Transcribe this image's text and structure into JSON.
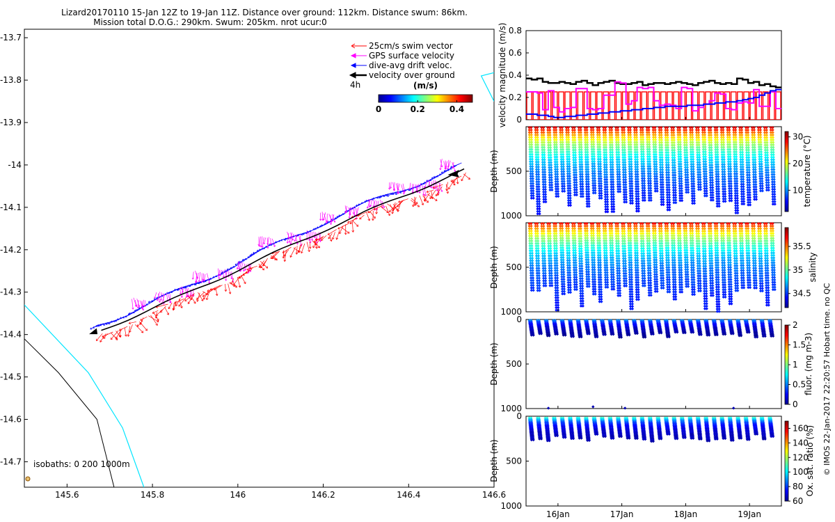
{
  "header": {
    "line1": "Lizard20170110 15-Jan 12Z to 19-Jan 11Z. Distance over ground: 112km. Distance swum: 86km.",
    "line2": "Mission total D.O.G.: 290km. Swum: 205km. nrot ucur:0"
  },
  "credit": "© IMOS 22-Jan-2017 22:20:57 Hobart time. no QC",
  "colors": {
    "swim": "#ff0000",
    "gps": "#ff00ff",
    "drift": "#0000ff",
    "ground": "#000000",
    "coast": "#00e5ff",
    "isobath": "#000000"
  },
  "chart_data": [
    {
      "id": "map",
      "type": "line",
      "title": "",
      "xlim": [
        145.5,
        146.6
      ],
      "ylim": [
        -14.76,
        -13.68
      ],
      "xticks": [
        145.6,
        145.8,
        146,
        146.2,
        146.4,
        146.6
      ],
      "xtick_labels": [
        "145.6",
        "145.8",
        "146",
        "146.2",
        "146.4",
        "146.6"
      ],
      "yticks": [
        -13.7,
        -13.8,
        -13.9,
        -14,
        -14.1,
        -14.2,
        -14.3,
        -14.4,
        -14.5,
        -14.6,
        -14.7
      ],
      "ytick_labels": [
        "-13.7",
        "-13.8",
        "-13.9",
        "-14",
        "-14.1",
        "-14.2",
        "-14.3",
        "-14.4",
        "-14.5",
        "-14.6",
        "-14.7"
      ],
      "legend": [
        {
          "label": "25cm/s swim vector",
          "key": "swim"
        },
        {
          "label": "GPS surface velocity",
          "key": "gps"
        },
        {
          "label": "dive-avg drift veloc.",
          "key": "drift"
        },
        {
          "label": "velocity over ground",
          "key": "ground"
        }
      ],
      "legend_interval": "4h",
      "colorbar": {
        "label": "(m/s)",
        "ticks": [
          0,
          0.2,
          0.4
        ],
        "tick_labels": [
          "0",
          "0.2",
          "0.4"
        ],
        "range": [
          0,
          0.48
        ]
      },
      "isobath_label": "isobaths: 0   200  1000m",
      "track_start": [
        145.68,
        -14.39
      ],
      "track_end": [
        146.53,
        -14.01
      ],
      "coast_line": [
        [
          145.5,
          -14.33
        ],
        [
          145.65,
          -14.49
        ],
        [
          145.73,
          -14.62
        ],
        [
          145.78,
          -14.76
        ]
      ],
      "isobath_line": [
        [
          145.5,
          -14.41
        ],
        [
          145.58,
          -14.49
        ],
        [
          145.67,
          -14.6
        ],
        [
          145.71,
          -14.76
        ]
      ],
      "edge_line": [
        [
          146.6,
          -13.85
        ],
        [
          146.57,
          -13.79
        ],
        [
          146.61,
          -13.78
        ],
        [
          146.63,
          -13.8
        ]
      ]
    },
    {
      "id": "velocity",
      "type": "line",
      "ylabel": "velocity magnitude (m/s)",
      "ylim": [
        0,
        0.8
      ],
      "yticks": [
        0,
        0.2,
        0.4,
        0.6,
        0.8
      ],
      "ytick_labels": [
        "0",
        "0.2",
        "0.4",
        "0.6",
        "0.8"
      ],
      "xlim": [
        15.5,
        19.5
      ],
      "series": [
        {
          "name": "velocity over ground",
          "values": [
            0.37,
            0.36,
            0.37,
            0.34,
            0.33,
            0.33,
            0.34,
            0.33,
            0.32,
            0.34,
            0.35,
            0.33,
            0.31,
            0.33,
            0.34,
            0.35,
            0.33,
            0.32,
            0.32,
            0.33,
            0.34,
            0.31,
            0.32,
            0.33,
            0.33,
            0.32,
            0.33,
            0.34,
            0.33,
            0.32,
            0.31,
            0.33,
            0.34,
            0.35,
            0.33,
            0.32,
            0.33,
            0.32,
            0.37,
            0.36,
            0.33,
            0.34,
            0.31,
            0.32,
            0.3,
            0.29
          ]
        },
        {
          "name": "GPS surface velocity",
          "values": [
            0.25,
            0.25,
            0.24,
            0.09,
            0.26,
            0.11,
            0.07,
            0.1,
            0.11,
            0.28,
            0.28,
            0.1,
            0.09,
            0.1,
            0.22,
            0.22,
            0.34,
            0.33,
            0.14,
            0.17,
            0.29,
            0.28,
            0.29,
            0.17,
            0.13,
            0.14,
            0.13,
            0.1,
            0.29,
            0.28,
            0.08,
            0.11,
            0.14,
            0.17,
            0.24,
            0.23,
            0.1,
            0.09,
            0.15,
            0.16,
            0.15,
            0.27,
            0.12,
            0.12,
            0.25,
            0.1
          ]
        },
        {
          "name": "dive-avg drift veloc.",
          "values": [
            0.05,
            0.05,
            0.04,
            0.04,
            0.03,
            0.02,
            0.02,
            0.03,
            0.03,
            0.04,
            0.04,
            0.05,
            0.05,
            0.06,
            0.06,
            0.07,
            0.07,
            0.08,
            0.08,
            0.09,
            0.09,
            0.1,
            0.1,
            0.11,
            0.11,
            0.12,
            0.12,
            0.12,
            0.12,
            0.13,
            0.13,
            0.13,
            0.14,
            0.14,
            0.15,
            0.15,
            0.16,
            0.16,
            0.17,
            0.18,
            0.19,
            0.2,
            0.22,
            0.24,
            0.26,
            0.27
          ]
        },
        {
          "name": "25cm/s swim vector",
          "values": [
            0.25
          ]
        }
      ]
    },
    {
      "id": "temperature",
      "type": "scatter",
      "ylabel": "Depth (m)",
      "yticks": [
        500,
        1000
      ],
      "ytick_labels": [
        "500",
        "1000"
      ],
      "ylim": [
        0,
        1000
      ],
      "colorbar": {
        "label": "temperature (°C)",
        "range": [
          2,
          32
        ],
        "ticks": [
          10,
          20,
          30
        ],
        "tick_labels": [
          "10",
          "20",
          "30"
        ]
      },
      "surface_value": 30,
      "deep_value": 5,
      "decay_depth": 300,
      "max_depth": 1000,
      "min_depth": 10,
      "dives": 40
    },
    {
      "id": "salinity",
      "type": "scatter",
      "ylabel": "Depth (m)",
      "yticks": [
        500,
        1000
      ],
      "ytick_labels": [
        "500",
        "1000"
      ],
      "ylim": [
        0,
        1000
      ],
      "colorbar": {
        "label": "salinity",
        "range": [
          34.2,
          35.9
        ],
        "ticks": [
          34.5,
          35,
          35.5
        ],
        "tick_labels": [
          "34.5",
          "35",
          "35.5"
        ]
      },
      "surface_value": 35.7,
      "deep_value": 34.4,
      "decay_depth": 280,
      "max_depth": 1000,
      "min_depth": 10,
      "dives": 40
    },
    {
      "id": "fluor",
      "type": "scatter",
      "ylabel": "Depth (m)",
      "yticks": [
        0,
        500,
        1000
      ],
      "ytick_labels": [
        "0",
        "500",
        "1000"
      ],
      "ylim": [
        0,
        1000
      ],
      "colorbar": {
        "label": "fluor. (mg m-3)",
        "range": [
          0,
          2
        ],
        "ticks": [
          0,
          0.5,
          1,
          1.5,
          2
        ],
        "tick_labels": [
          "0",
          "0.5",
          "1",
          "1.5",
          "2"
        ]
      },
      "surface_value": 0.6,
      "deep_value": 0.03,
      "decay_depth": 60,
      "max_depth": 200,
      "min_depth": 10,
      "dives": 31,
      "extra_points": [
        [
          15.85,
          995
        ],
        [
          16.55,
          980
        ],
        [
          17.05,
          995
        ],
        [
          18.75,
          995
        ]
      ]
    },
    {
      "id": "oxygen",
      "type": "scatter",
      "ylabel": "Depth (m)",
      "yticks": [
        0,
        500,
        1000
      ],
      "ytick_labels": [
        "0",
        "500",
        "1000"
      ],
      "ylim": [
        0,
        1000
      ],
      "colorbar": {
        "label": "Ox. sat. ratio (%)",
        "range": [
          60,
          170
        ],
        "ticks": [
          60,
          80,
          100,
          120,
          140,
          160
        ],
        "tick_labels": [
          "60",
          "80",
          "100",
          "120",
          "140",
          "160"
        ]
      },
      "surface_value": 120,
      "deep_value": 65,
      "decay_depth": 60,
      "max_depth": 280,
      "min_depth": 20,
      "dives": 31
    }
  ],
  "time_axis": {
    "xlim": [
      15.5,
      19.5
    ],
    "ticks": [
      16,
      17,
      18,
      19
    ],
    "tick_labels": [
      "16Jan",
      "17Jan",
      "18Jan",
      "19Jan"
    ]
  }
}
